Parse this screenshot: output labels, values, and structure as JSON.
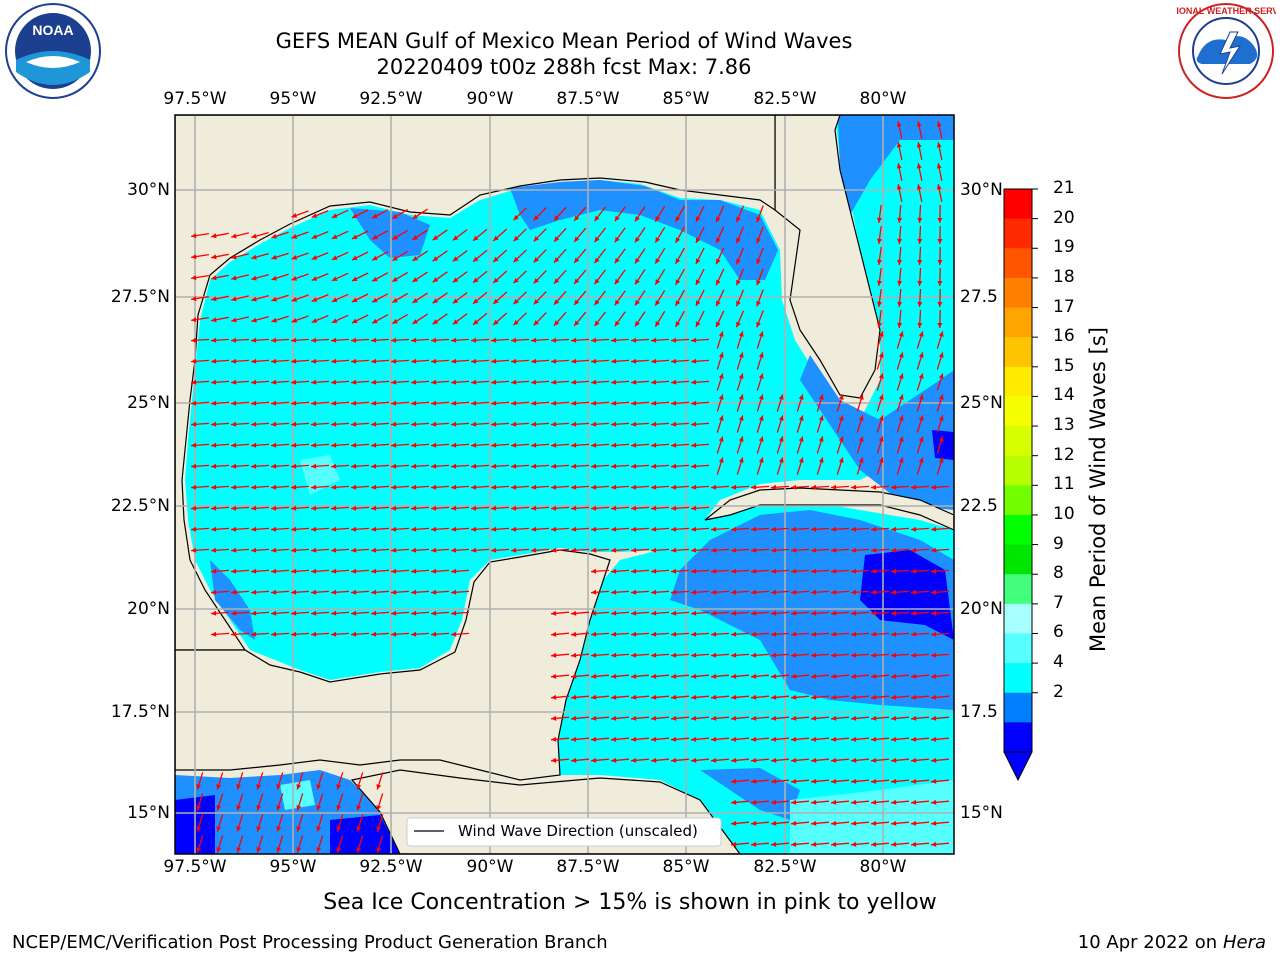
{
  "title": {
    "line1": "GEFS MEAN Gulf of Mexico Mean Period of Wind Waves",
    "line2": "20220409 t00z 288h fcst   Max: 7.86"
  },
  "logos": {
    "left": "noara-logo",
    "right": "national-weather-service-logo",
    "left_text": "NOAA",
    "right_text": "NATIONAL WEATHER SERVICE"
  },
  "axes": {
    "lon_labels": [
      "97.5°W",
      "95°W",
      "92.5°W",
      "90°W",
      "87.5°W",
      "85°W",
      "82.5°W",
      "80°W"
    ],
    "lat_labels_left": [
      "30°N",
      "27.5°N",
      "25°N",
      "22.5°N",
      "20°N",
      "17.5°N",
      "15°N"
    ],
    "lat_labels_right": [
      "30°N",
      "27.5",
      "25°N",
      "22.5",
      "20°N",
      "17.5",
      "15°N"
    ]
  },
  "legend": {
    "label": "Wind Wave Direction (unscaled)"
  },
  "colorbar": {
    "title": "Mean Period of Wind Waves [s]",
    "ticks": [
      "21",
      "20",
      "19",
      "18",
      "17",
      "16",
      "15",
      "14",
      "13",
      "12",
      "11",
      "10",
      "9",
      "8",
      "7",
      "6",
      "4",
      "2"
    ],
    "colors": [
      "#ff0000",
      "#ff2a00",
      "#ff5500",
      "#ff7f00",
      "#ffa500",
      "#ffc400",
      "#ffeb00",
      "#f5ff00",
      "#d6ff00",
      "#b7ff00",
      "#73ff00",
      "#00ff00",
      "#00e600",
      "#44ff7d",
      "#a7ffff",
      "#58ffff",
      "#00ffff",
      "#0080ff",
      "#0000ff"
    ]
  },
  "note": "Sea Ice Concentration > 15% is shown in pink to yellow",
  "footer": {
    "left": "NCEP/EMC/Verification Post Processing Product Generation Branch",
    "right_date": "10 Apr 2022 on ",
    "right_machine": "Hera"
  },
  "map_colors": {
    "land": "#efecdc",
    "ocean_main": "#00ffff",
    "ocean_light": "#58ffff",
    "ocean_blue": "#1e90ff",
    "ocean_deep": "#0000ff",
    "arrow": "#ff0000",
    "grid": "#b0b0b0"
  }
}
